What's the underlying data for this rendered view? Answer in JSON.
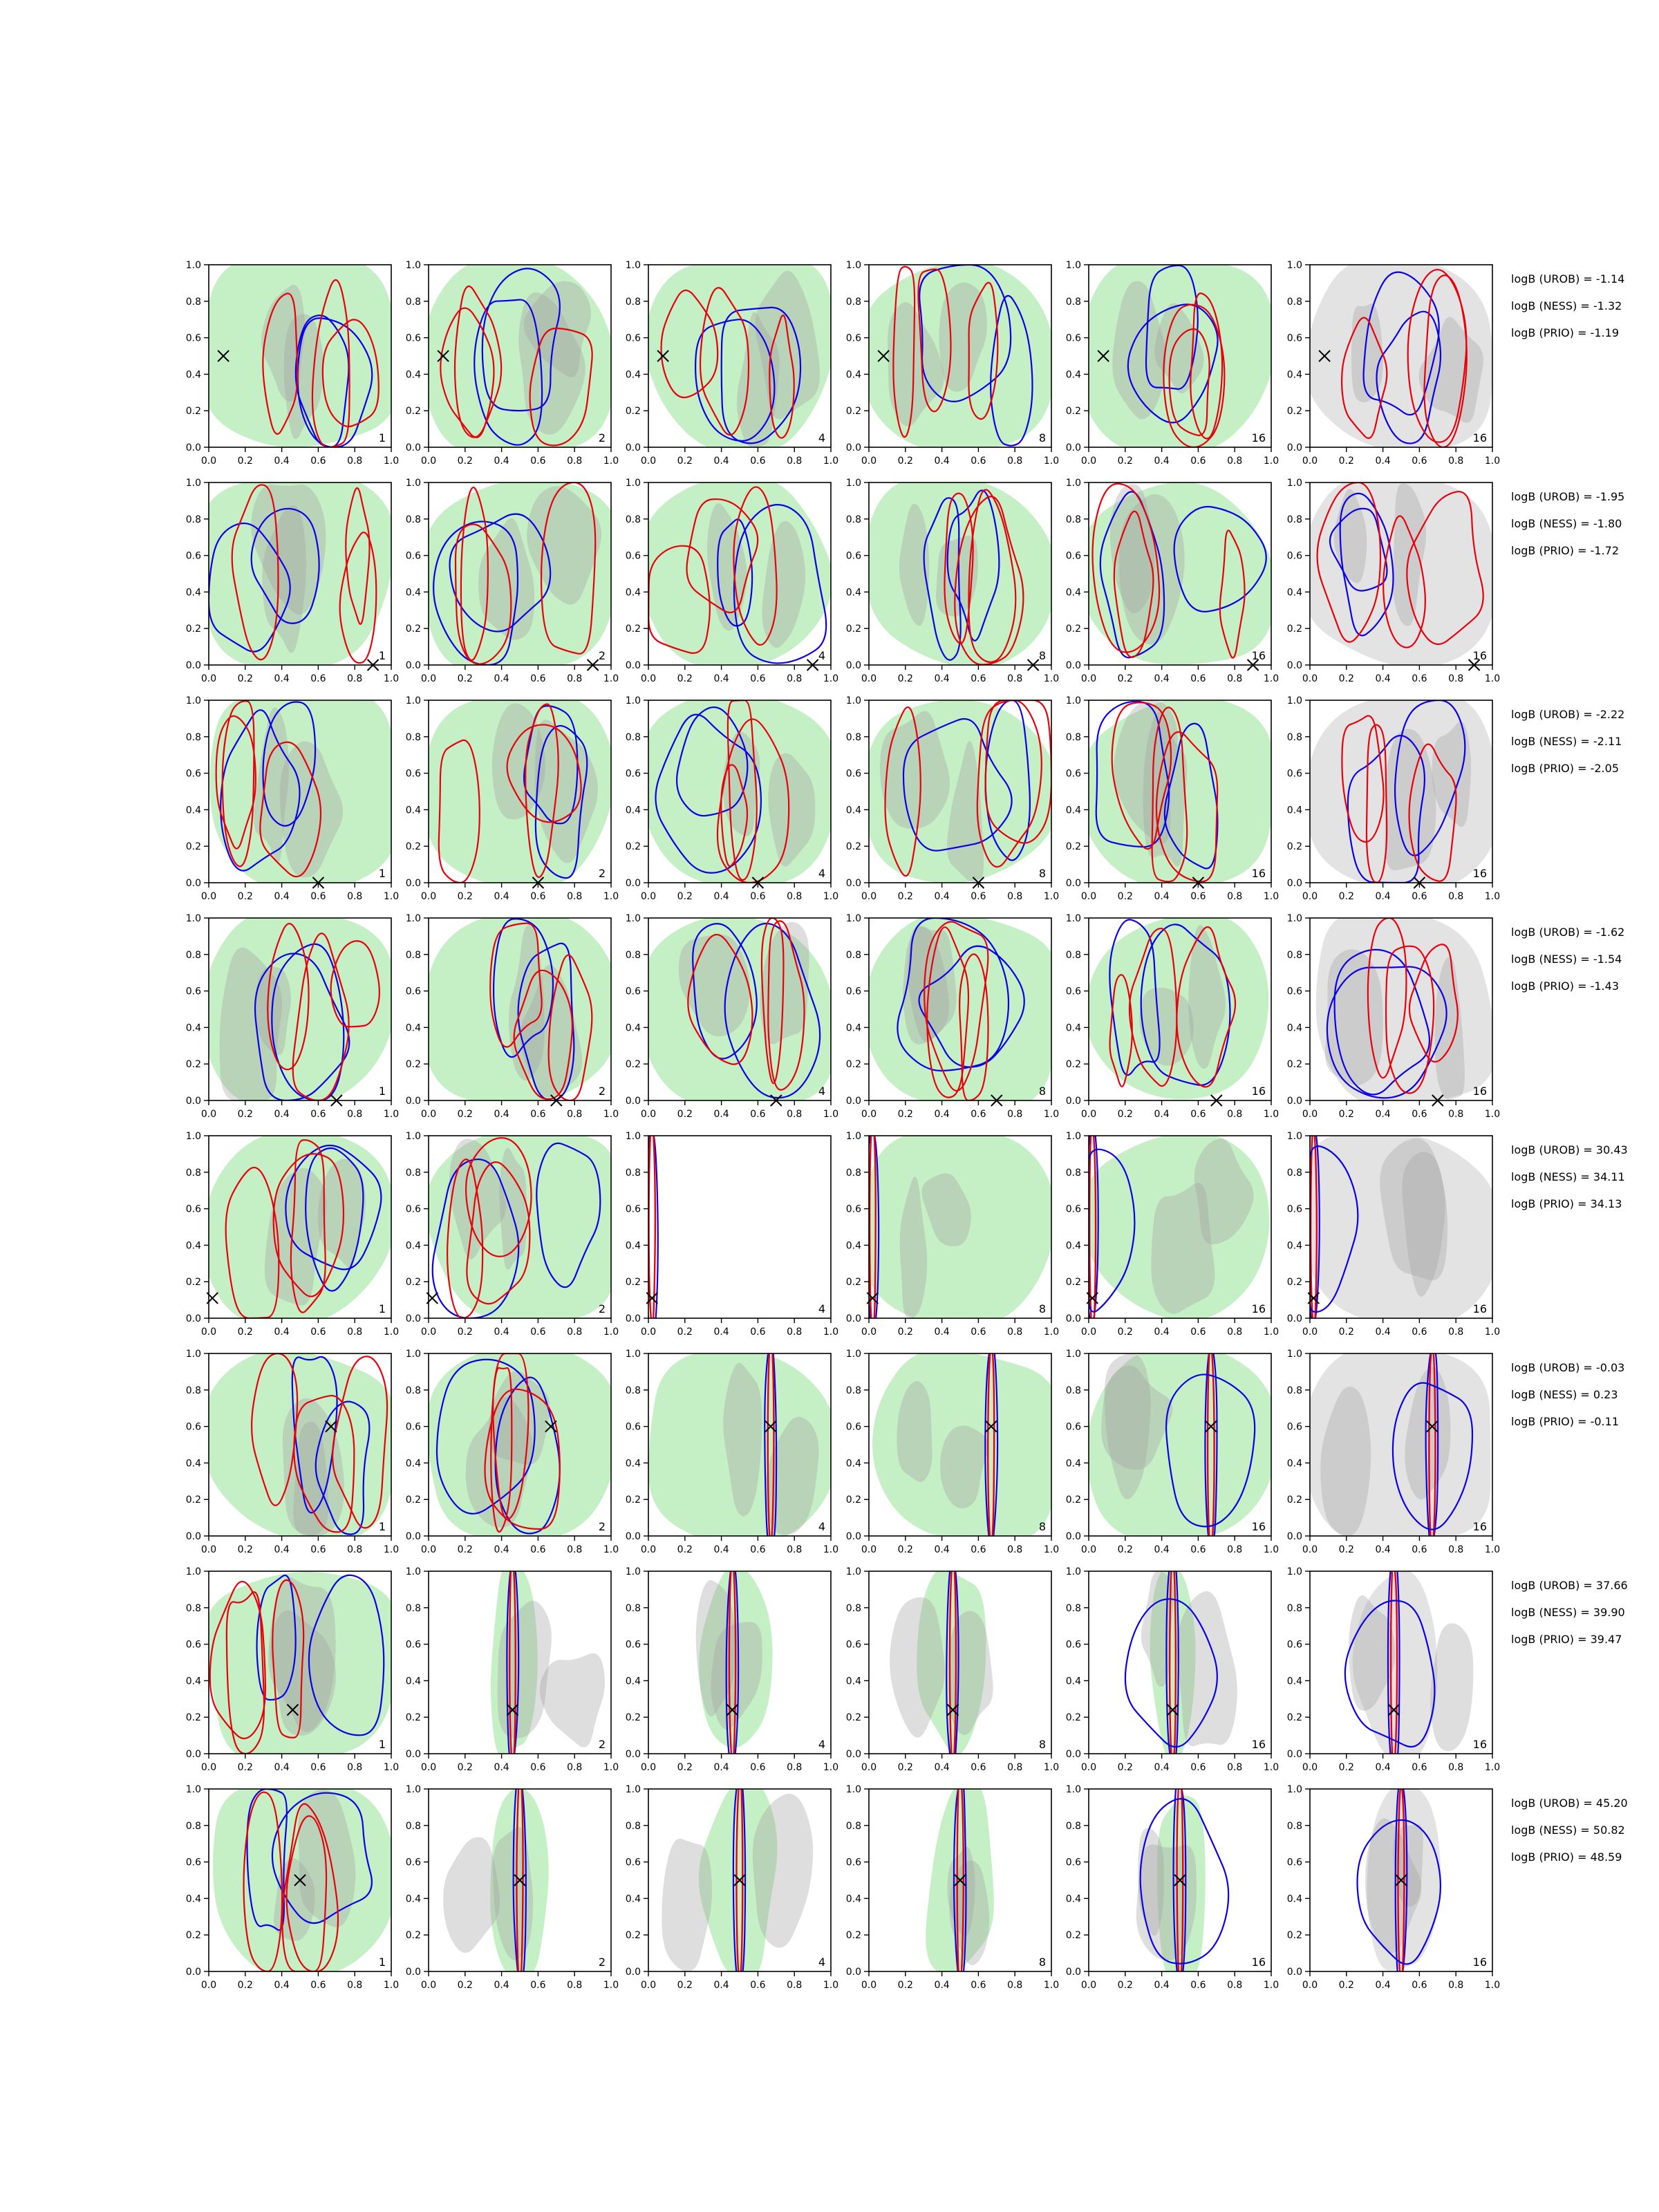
{
  "chart_data": {
    "type": "contour",
    "layout": {
      "rows": 8,
      "cols": 6
    },
    "xlim": [
      0.0,
      1.0
    ],
    "ylim": [
      0.0,
      1.0
    ],
    "x_ticks": [
      "0.0",
      "0.2",
      "0.4",
      "0.6",
      "0.8",
      "1.0"
    ],
    "y_ticks": [
      "0.0",
      "0.2",
      "0.4",
      "0.6",
      "0.8",
      "1.0"
    ],
    "column_labels": [
      "1",
      "2",
      "4",
      "8",
      "16",
      "16"
    ],
    "colors": {
      "red": "#e8000b",
      "blue": "#0b00e8",
      "green": "#b7ebb7",
      "grey": "#a0a0a0",
      "lightgrey": "#d9d9d9"
    },
    "rows": [
      {
        "marker": [
          0.08,
          0.5
        ],
        "logB": [
          "logB (UROB) = -1.14",
          "logB (NESS) = -1.32",
          "logB (PRIO) = -1.19"
        ]
      },
      {
        "marker": [
          0.9,
          0.0
        ],
        "logB": [
          "logB (UROB) = -1.95",
          "logB (NESS) = -1.80",
          "logB (PRIO) = -1.72"
        ]
      },
      {
        "marker": [
          0.6,
          0.0
        ],
        "logB": [
          "logB (UROB) = -2.22",
          "logB (NESS) = -2.11",
          "logB (PRIO) = -2.05"
        ]
      },
      {
        "marker": [
          0.7,
          0.0
        ],
        "logB": [
          "logB (UROB) = -1.62",
          "logB (NESS) = -1.54",
          "logB (PRIO) = -1.43"
        ]
      },
      {
        "marker": [
          0.02,
          0.11
        ],
        "logB": [
          "logB (UROB) = 30.43",
          "logB (NESS) = 34.11",
          "logB (PRIO) = 34.13"
        ]
      },
      {
        "marker": [
          0.67,
          0.6
        ],
        "logB": [
          "logB (UROB) = -0.03",
          "logB (NESS) = 0.23",
          "logB (PRIO) = -0.11"
        ]
      },
      {
        "marker": [
          0.46,
          0.24
        ],
        "logB": [
          "logB (UROB) = 37.66",
          "logB (NESS) = 39.90",
          "logB (PRIO) = 39.47"
        ]
      },
      {
        "marker": [
          0.5,
          0.5
        ],
        "logB": [
          "logB (UROB) = 45.20",
          "logB (NESS) = 50.82",
          "logB (PRIO) = 48.59"
        ]
      }
    ]
  }
}
